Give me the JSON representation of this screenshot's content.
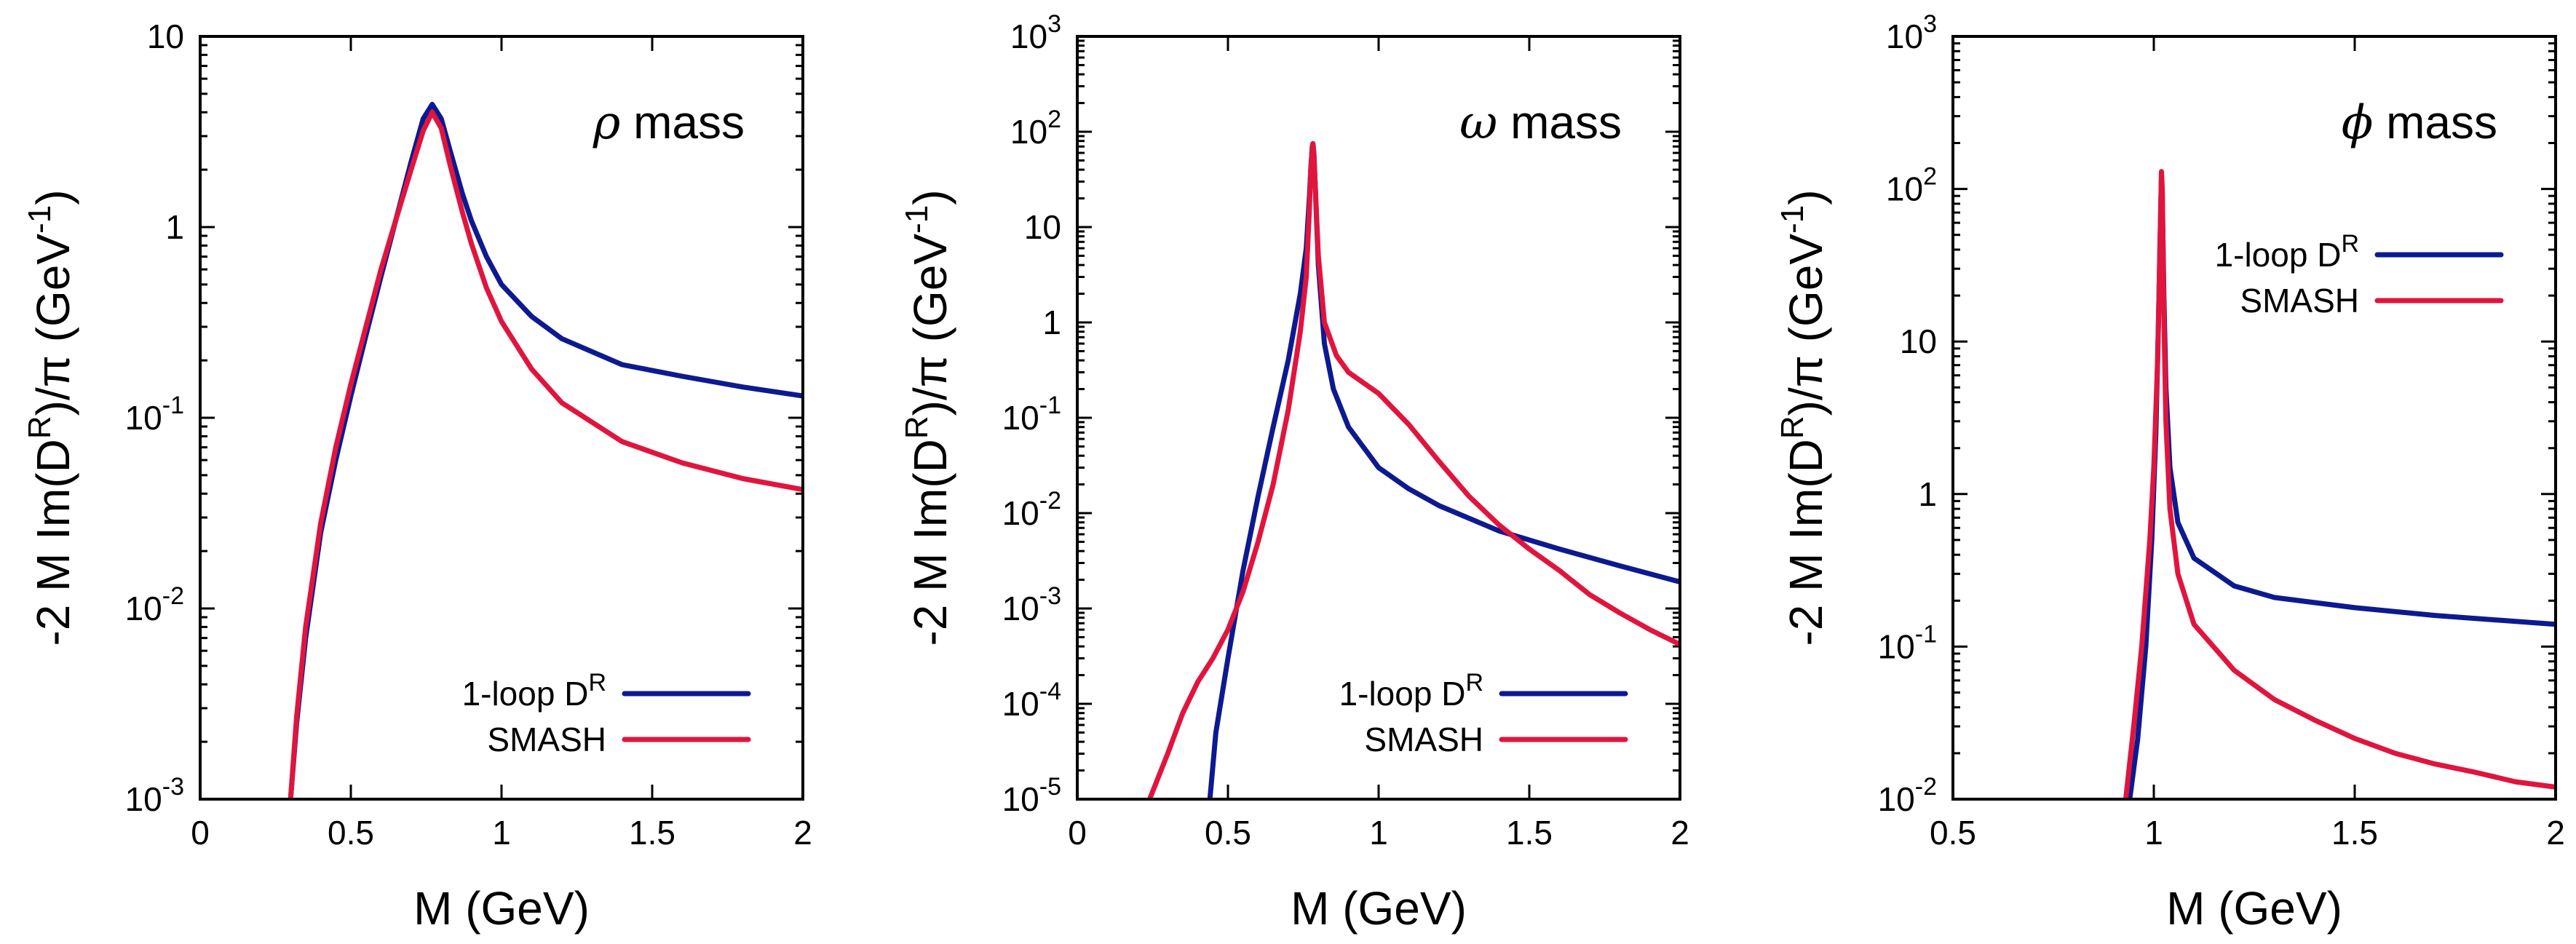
{
  "colors": {
    "one_loop": "#0d1a8f",
    "smash": "#e0153e"
  },
  "chart_data": [
    {
      "type": "line",
      "title": "ρ mass",
      "title_symbol": "ρ",
      "title_word": "mass",
      "xlabel": "M (GeV)",
      "ylabel": "-2 M Im(D^R)/π (GeV^-1)",
      "ylabel_parts": {
        "a": "-2 M Im(D",
        "sup1": "R",
        "b": ")/π (GeV",
        "sup2": "-1",
        "c": ")"
      },
      "xscale": "linear",
      "yscale": "log",
      "xlim": [
        0,
        2
      ],
      "ylim": [
        0.001,
        10
      ],
      "xticks": [
        0,
        0.5,
        1,
        1.5,
        2
      ],
      "xtick_labels": [
        "0",
        "0.5",
        "1",
        "1.5",
        "2"
      ],
      "yticks": [
        {
          "value": 10,
          "base": "10",
          "exp": ""
        },
        {
          "value": 1,
          "base": "1",
          "exp": ""
        },
        {
          "value": 0.1,
          "base": "10",
          "exp": "-1"
        },
        {
          "value": 0.01,
          "base": "10",
          "exp": "-2"
        },
        {
          "value": 0.001,
          "base": "10",
          "exp": "-3"
        }
      ],
      "legend": {
        "position": "bottom-right",
        "entries": [
          {
            "label": "1-loop D",
            "label_sup": "R",
            "series": "one_loop"
          },
          {
            "label": "SMASH",
            "label_sup": "",
            "series": "smash"
          }
        ]
      },
      "series": [
        {
          "name": "1-loop D^R",
          "key": "one_loop",
          "x": [
            0.3,
            0.32,
            0.35,
            0.4,
            0.45,
            0.5,
            0.55,
            0.6,
            0.65,
            0.7,
            0.74,
            0.77,
            0.8,
            0.83,
            0.87,
            0.9,
            0.95,
            1.0,
            1.1,
            1.2,
            1.4,
            1.6,
            1.8,
            2.0
          ],
          "y": [
            0.001,
            0.0025,
            0.007,
            0.025,
            0.06,
            0.13,
            0.27,
            0.55,
            1.1,
            2.2,
            3.7,
            4.4,
            3.7,
            2.5,
            1.5,
            1.08,
            0.7,
            0.5,
            0.34,
            0.26,
            0.19,
            0.165,
            0.145,
            0.13
          ]
        },
        {
          "name": "SMASH",
          "key": "smash",
          "x": [
            0.3,
            0.32,
            0.35,
            0.4,
            0.45,
            0.5,
            0.55,
            0.6,
            0.65,
            0.7,
            0.74,
            0.77,
            0.8,
            0.83,
            0.87,
            0.9,
            0.95,
            1.0,
            1.1,
            1.2,
            1.4,
            1.6,
            1.8,
            2.0
          ],
          "y": [
            0.001,
            0.0027,
            0.008,
            0.028,
            0.07,
            0.15,
            0.3,
            0.6,
            1.1,
            2.0,
            3.2,
            4.0,
            3.3,
            2.1,
            1.2,
            0.82,
            0.48,
            0.32,
            0.18,
            0.12,
            0.075,
            0.058,
            0.048,
            0.042
          ]
        }
      ]
    },
    {
      "type": "line",
      "title": "ω mass",
      "title_symbol": "ω",
      "title_word": "mass",
      "xlabel": "M (GeV)",
      "ylabel": "-2 M Im(D^R)/π (GeV^-1)",
      "ylabel_parts": {
        "a": "-2 M Im(D",
        "sup1": "R",
        "b": ")/π (GeV",
        "sup2": "-1",
        "c": ")"
      },
      "xscale": "linear",
      "yscale": "log",
      "xlim": [
        0,
        2
      ],
      "ylim": [
        1e-05,
        1000
      ],
      "xticks": [
        0,
        0.5,
        1,
        1.5,
        2
      ],
      "xtick_labels": [
        "0",
        "0.5",
        "1",
        "1.5",
        "2"
      ],
      "yticks": [
        {
          "value": 1000,
          "base": "10",
          "exp": "3"
        },
        {
          "value": 100,
          "base": "10",
          "exp": "2"
        },
        {
          "value": 10,
          "base": "10",
          "exp": ""
        },
        {
          "value": 1,
          "base": "1",
          "exp": ""
        },
        {
          "value": 0.1,
          "base": "10",
          "exp": "-1"
        },
        {
          "value": 0.01,
          "base": "10",
          "exp": "-2"
        },
        {
          "value": 0.001,
          "base": "10",
          "exp": "-3"
        },
        {
          "value": 0.0001,
          "base": "10",
          "exp": "-4"
        },
        {
          "value": 1e-05,
          "base": "10",
          "exp": "-5"
        }
      ],
      "legend": {
        "position": "bottom-right",
        "entries": [
          {
            "label": "1-loop D",
            "label_sup": "R",
            "series": "one_loop"
          },
          {
            "label": "SMASH",
            "label_sup": "",
            "series": "smash"
          }
        ]
      },
      "series": [
        {
          "name": "1-loop D^R",
          "key": "one_loop",
          "x": [
            0.44,
            0.46,
            0.5,
            0.55,
            0.6,
            0.65,
            0.7,
            0.74,
            0.76,
            0.77,
            0.775,
            0.78,
            0.782,
            0.785,
            0.79,
            0.8,
            0.82,
            0.85,
            0.9,
            1.0,
            1.1,
            1.2,
            1.4,
            1.6,
            1.8,
            2.0
          ],
          "y": [
            1e-05,
            5e-05,
            0.0003,
            0.0025,
            0.015,
            0.08,
            0.4,
            2.0,
            6.0,
            20,
            40,
            70,
            75,
            60,
            25,
            4.0,
            0.6,
            0.2,
            0.08,
            0.03,
            0.018,
            0.012,
            0.0065,
            0.0042,
            0.0028,
            0.0019
          ]
        },
        {
          "name": "SMASH",
          "key": "smash",
          "x": [
            0.24,
            0.3,
            0.35,
            0.4,
            0.45,
            0.5,
            0.55,
            0.6,
            0.65,
            0.7,
            0.74,
            0.76,
            0.77,
            0.775,
            0.78,
            0.782,
            0.785,
            0.79,
            0.8,
            0.82,
            0.86,
            0.9,
            1.0,
            1.1,
            1.2,
            1.3,
            1.4,
            1.5,
            1.6,
            1.7,
            1.8,
            1.9,
            2.0
          ],
          "y": [
            1e-05,
            3e-05,
            8e-05,
            0.00017,
            0.0003,
            0.0006,
            0.0015,
            0.005,
            0.02,
            0.12,
            0.8,
            3.0,
            15,
            40,
            70,
            75,
            60,
            25,
            5.0,
            1.0,
            0.45,
            0.3,
            0.18,
            0.085,
            0.035,
            0.015,
            0.0075,
            0.0042,
            0.0025,
            0.0014,
            0.0009,
            0.0006,
            0.00042
          ]
        }
      ]
    },
    {
      "type": "line",
      "title": "ϕ mass",
      "title_symbol": "ϕ",
      "title_word": "mass",
      "xlabel": "M (GeV)",
      "ylabel": "-2 M Im(D^R)/π (GeV^-1)",
      "ylabel_parts": {
        "a": "-2 M Im(D",
        "sup1": "R",
        "b": ")/π (GeV",
        "sup2": "-1",
        "c": ")"
      },
      "xscale": "linear",
      "yscale": "log",
      "xlim": [
        0.5,
        2
      ],
      "ylim": [
        0.01,
        1000
      ],
      "xticks": [
        0.5,
        1,
        1.5,
        2
      ],
      "xtick_labels": [
        "0.5",
        "1",
        "1.5",
        "2"
      ],
      "yticks": [
        {
          "value": 1000,
          "base": "10",
          "exp": "3"
        },
        {
          "value": 100,
          "base": "10",
          "exp": "2"
        },
        {
          "value": 10,
          "base": "10",
          "exp": ""
        },
        {
          "value": 1,
          "base": "1",
          "exp": ""
        },
        {
          "value": 0.1,
          "base": "10",
          "exp": "-1"
        },
        {
          "value": 0.01,
          "base": "10",
          "exp": "-2"
        }
      ],
      "legend": {
        "position": "top-right",
        "entries": [
          {
            "label": "1-loop D",
            "label_sup": "R",
            "series": "one_loop"
          },
          {
            "label": "SMASH",
            "label_sup": "",
            "series": "smash"
          }
        ]
      },
      "series": [
        {
          "name": "1-loop D^R",
          "key": "one_loop",
          "x": [
            0.94,
            0.96,
            0.98,
            0.995,
            1.005,
            1.012,
            1.017,
            1.019,
            1.021,
            1.025,
            1.03,
            1.04,
            1.06,
            1.1,
            1.2,
            1.3,
            1.5,
            1.7,
            2.0
          ],
          "y": [
            0.01,
            0.025,
            0.1,
            0.5,
            2.5,
            15,
            70,
            120,
            90,
            20,
            5.0,
            1.5,
            0.65,
            0.38,
            0.25,
            0.21,
            0.18,
            0.16,
            0.14
          ]
        },
        {
          "name": "SMASH",
          "key": "smash",
          "x": [
            0.93,
            0.95,
            0.97,
            0.99,
            1.0,
            1.01,
            1.015,
            1.019,
            1.021,
            1.025,
            1.03,
            1.04,
            1.06,
            1.1,
            1.2,
            1.3,
            1.4,
            1.5,
            1.6,
            1.7,
            1.8,
            1.9,
            2.0
          ],
          "y": [
            0.01,
            0.03,
            0.1,
            0.5,
            1.5,
            8.0,
            40,
            130,
            100,
            15,
            3.0,
            0.8,
            0.3,
            0.14,
            0.07,
            0.045,
            0.033,
            0.025,
            0.02,
            0.017,
            0.015,
            0.013,
            0.012
          ]
        }
      ]
    }
  ]
}
